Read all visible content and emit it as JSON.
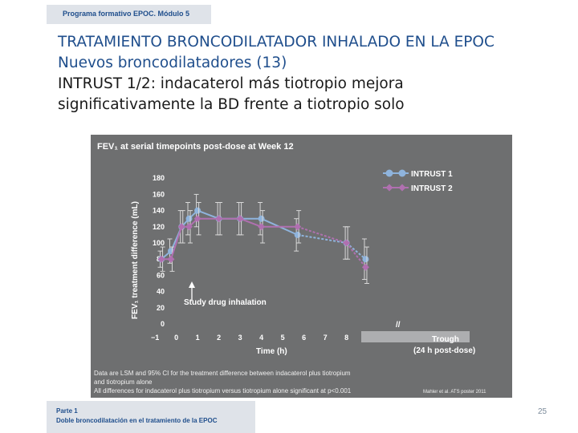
{
  "header": {
    "program": "Programa formativo EPOC. Módulo 5"
  },
  "title": {
    "line1": "TRATAMIENTO BRONCODILATADOR INHALADO EN LA EPOC",
    "line2": "Nuevos broncodilatadores (13)"
  },
  "subtitle": {
    "line1": "INTRUST 1/2: indacaterol más tiotropio mejora",
    "line2": "significativamente la BD frente a tiotropio solo"
  },
  "chart_data": {
    "type": "line",
    "title": "FEV₁ at serial timepoints post-dose at Week 12",
    "xlabel": "Time (h)",
    "ylabel": "FEV₁ treatment difference (mL)",
    "xticks": [
      "−1",
      "0",
      "1",
      "2",
      "3",
      "4",
      "5",
      "6",
      "7",
      "8"
    ],
    "yticks": [
      "0",
      "20",
      "40",
      "60",
      "80",
      "100",
      "120",
      "140",
      "160",
      "180"
    ],
    "ylim": [
      0,
      180
    ],
    "series": [
      {
        "name": "INTRUST 1",
        "color": "#8fb4dd",
        "points": [
          [
            -0.7,
            80
          ],
          [
            -0.25,
            90
          ],
          [
            0.25,
            120
          ],
          [
            0.6,
            130
          ],
          [
            1,
            140
          ],
          [
            2,
            130
          ],
          [
            3,
            130
          ],
          [
            4,
            130
          ],
          [
            5.7,
            110
          ],
          [
            8,
            100
          ],
          [
            8.9,
            80
          ]
        ],
        "ci": [
          [
            -0.7,
            70,
            90
          ],
          [
            -0.25,
            75,
            105
          ],
          [
            0.25,
            100,
            140
          ],
          [
            0.6,
            110,
            150
          ],
          [
            1,
            120,
            160
          ],
          [
            2,
            110,
            150
          ],
          [
            3,
            110,
            150
          ],
          [
            4,
            110,
            150
          ],
          [
            5.7,
            90,
            130
          ],
          [
            8,
            80,
            120
          ],
          [
            8.9,
            55,
            105
          ]
        ]
      },
      {
        "name": "INTRUST 2",
        "color": "#b070b0",
        "points": [
          [
            -0.7,
            80
          ],
          [
            -0.25,
            80
          ],
          [
            0.25,
            120
          ],
          [
            0.6,
            120
          ],
          [
            1,
            130
          ],
          [
            2,
            130
          ],
          [
            3,
            130
          ],
          [
            4,
            120
          ],
          [
            5.7,
            120
          ],
          [
            8,
            100
          ],
          [
            8.9,
            70
          ]
        ],
        "ci": [
          [
            -0.7,
            65,
            95
          ],
          [
            -0.25,
            65,
            95
          ],
          [
            0.25,
            100,
            140
          ],
          [
            0.6,
            100,
            140
          ],
          [
            1,
            110,
            150
          ],
          [
            2,
            110,
            150
          ],
          [
            3,
            110,
            150
          ],
          [
            4,
            100,
            140
          ],
          [
            5.7,
            100,
            140
          ],
          [
            8,
            80,
            120
          ],
          [
            8.9,
            50,
            95
          ]
        ]
      }
    ],
    "annotations": {
      "study_drug": "Study drug inhalation",
      "trough_line1": "Trough",
      "trough_line2": "(24 h post-dose)",
      "break": "//"
    },
    "legend_position": "top-right",
    "footnote_line1": "Data are LSM and 95% CI for the treatment difference between indacaterol plus tiotropium",
    "footnote_line2": "and tiotropium alone",
    "footnote_line3": "All differences for indacaterol plus tiotropium versus tiotropium alone significant at p<0.001",
    "source": "Mahler et al. ATS poster 2011"
  },
  "footer": {
    "part": "Parte 1",
    "section": "Doble broncodilatación en el tratamiento de la EPOC"
  },
  "page_number": "25"
}
